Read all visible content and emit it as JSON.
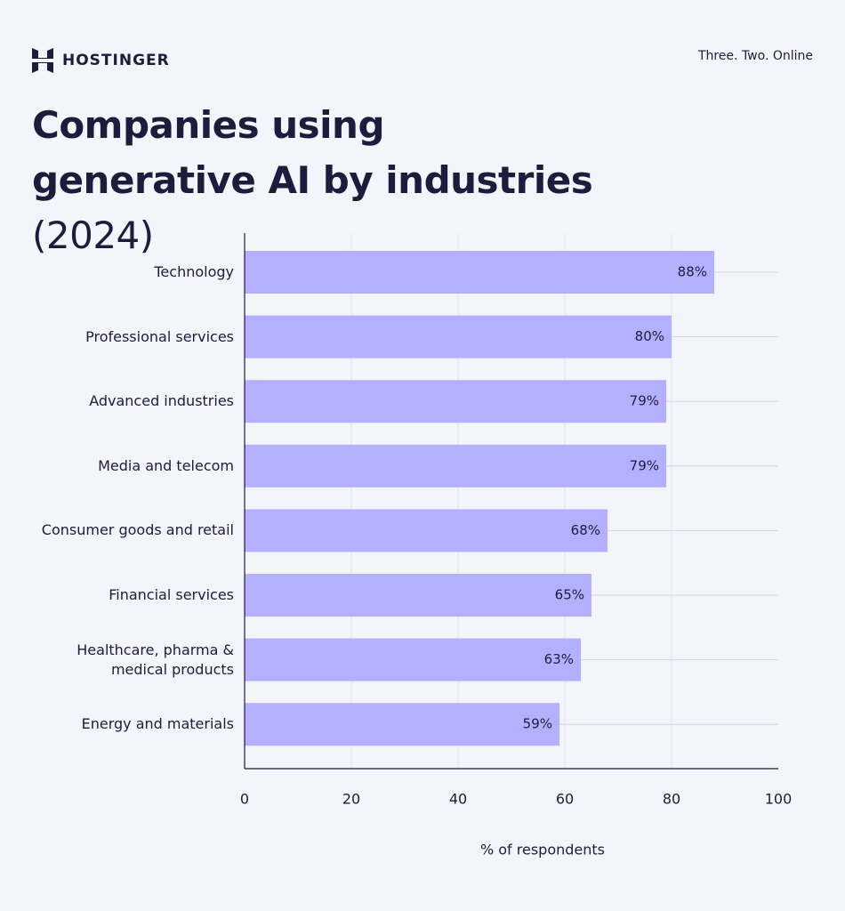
{
  "header": {
    "logo": "HOSTINGER",
    "tagline": "Three. Two. Online"
  },
  "chart_data": {
    "type": "hbar",
    "title": "Companies using generative AI by industries",
    "subtitle": "(2024)",
    "categories": [
      "Technology",
      "Professional services",
      "Advanced industries",
      "Media and telecom",
      "Consumer goods and retail",
      "Financial services",
      "Healthcare, pharma & medical products",
      "Energy and materials"
    ],
    "values": [
      88,
      80,
      79,
      79,
      68,
      65,
      63,
      59
    ],
    "value_labels": [
      "88%",
      "80%",
      "79%",
      "79%",
      "68%",
      "65%",
      "63%",
      "59%"
    ],
    "color": "#b3b1ff",
    "xlim": [
      0,
      100
    ],
    "xticks": [
      0,
      20,
      40,
      60,
      80,
      100
    ],
    "xlabel": "% of respondents",
    "grid": true
  }
}
